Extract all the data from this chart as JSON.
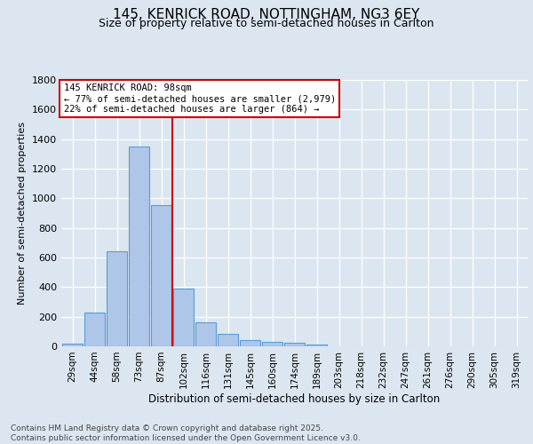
{
  "title_line1": "145, KENRICK ROAD, NOTTINGHAM, NG3 6EY",
  "title_line2": "Size of property relative to semi-detached houses in Carlton",
  "xlabel": "Distribution of semi-detached houses by size in Carlton",
  "ylabel": "Number of semi-detached properties",
  "bin_labels": [
    "29sqm",
    "44sqm",
    "58sqm",
    "73sqm",
    "87sqm",
    "102sqm",
    "116sqm",
    "131sqm",
    "145sqm",
    "160sqm",
    "174sqm",
    "189sqm",
    "203sqm",
    "218sqm",
    "232sqm",
    "247sqm",
    "261sqm",
    "276sqm",
    "290sqm",
    "305sqm",
    "319sqm"
  ],
  "bar_values": [
    20,
    230,
    645,
    1350,
    955,
    390,
    165,
    85,
    45,
    30,
    25,
    10,
    2,
    1,
    0,
    0,
    0,
    0,
    0,
    0,
    0
  ],
  "bar_color": "#aec6e8",
  "bar_edge_color": "#5b9bd5",
  "vline_color": "#cc0000",
  "annotation_title": "145 KENRICK ROAD: 98sqm",
  "annotation_line2": "← 77% of semi-detached houses are smaller (2,979)",
  "annotation_line3": "22% of semi-detached houses are larger (864) →",
  "annotation_box_facecolor": "#ffffff",
  "annotation_box_edgecolor": "#cc0000",
  "ylim_max": 1800,
  "yticks": [
    0,
    200,
    400,
    600,
    800,
    1000,
    1200,
    1400,
    1600,
    1800
  ],
  "footer_line1": "Contains HM Land Registry data © Crown copyright and database right 2025.",
  "footer_line2": "Contains public sector information licensed under the Open Government Licence v3.0.",
  "background_color": "#dce6f0",
  "grid_color": "#ffffff",
  "title_fontsize": 11,
  "subtitle_fontsize": 9,
  "ylabel_fontsize": 8,
  "xlabel_fontsize": 8.5,
  "tick_fontsize": 7.5,
  "footer_fontsize": 6.5,
  "annotation_fontsize": 7.5
}
